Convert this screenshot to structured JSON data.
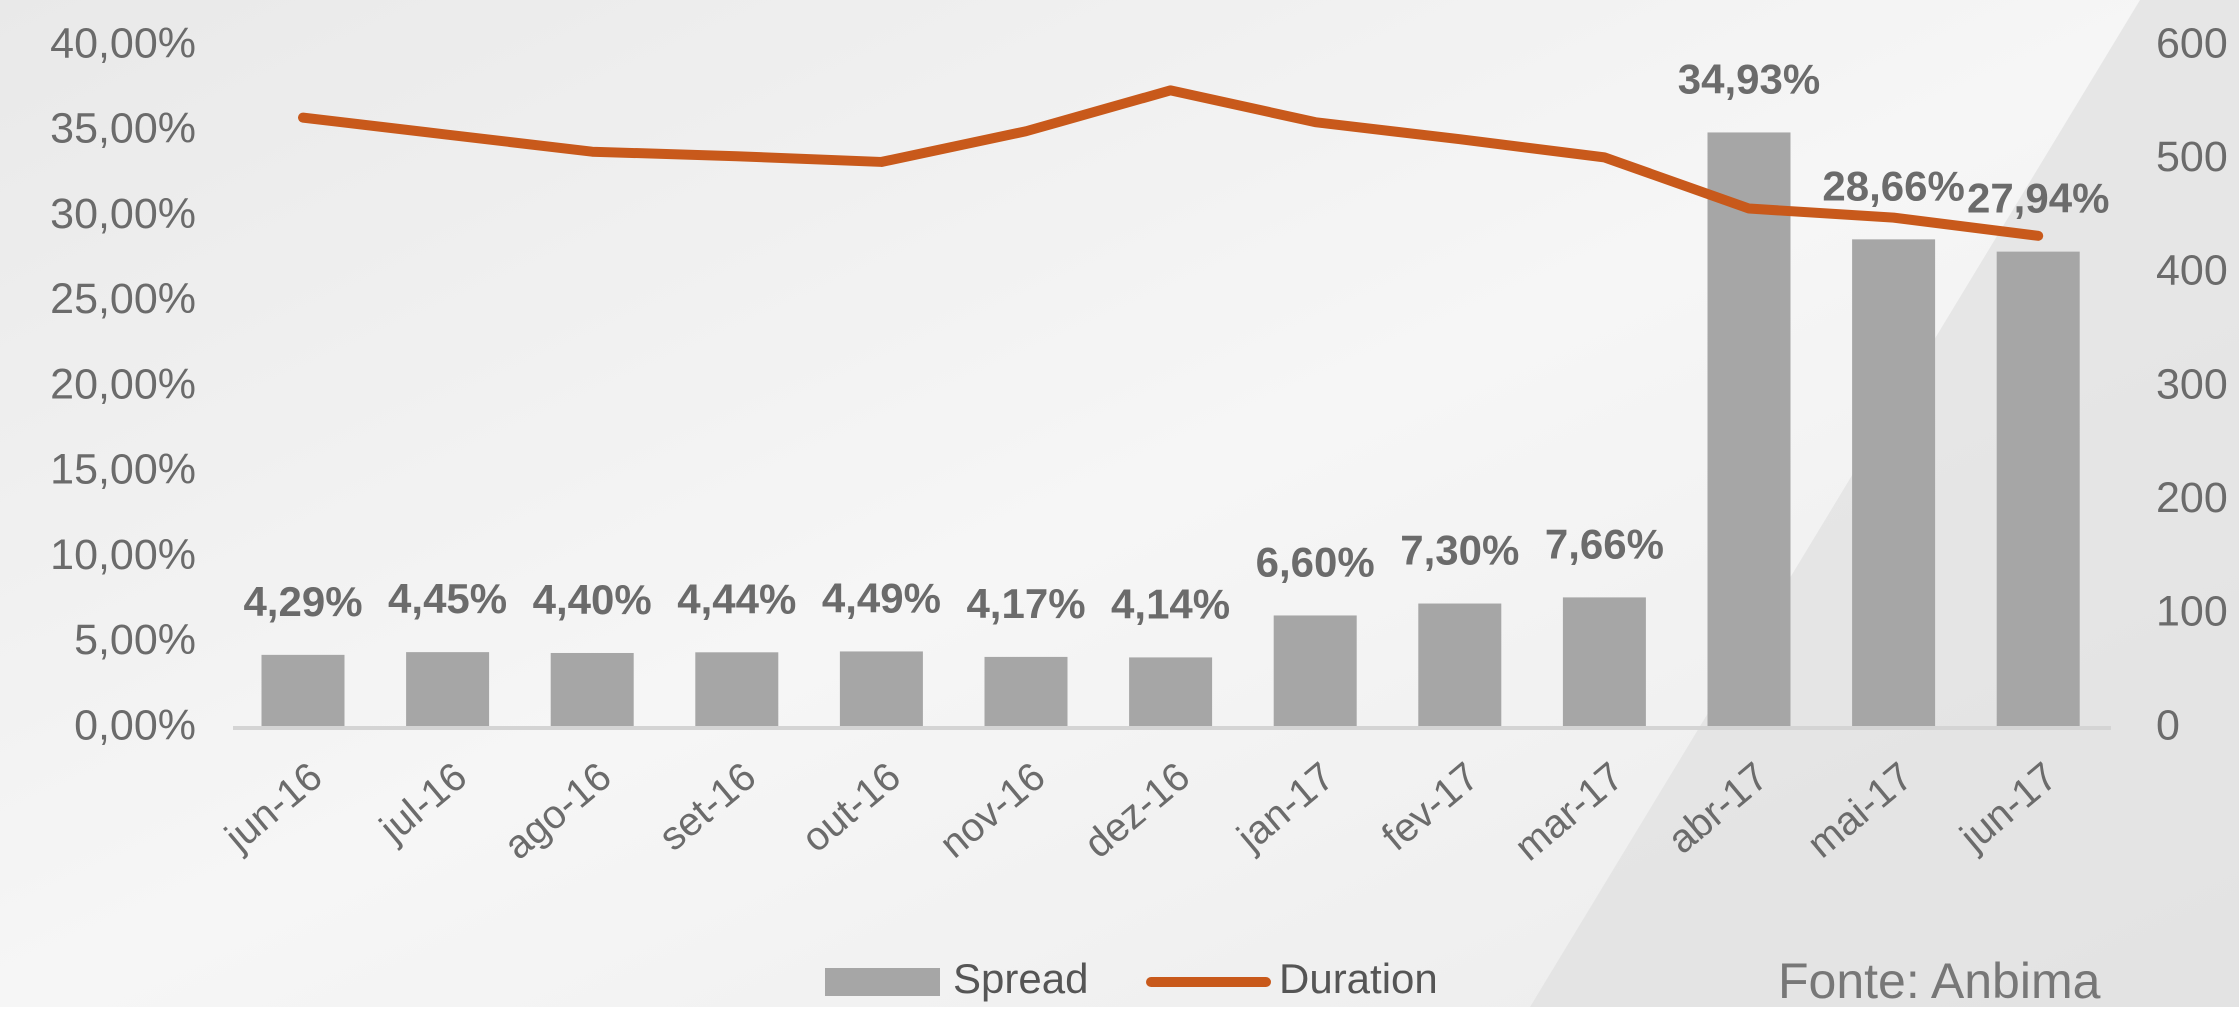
{
  "chart_data": {
    "type": "bar-line",
    "categories": [
      "jun-16",
      "jul-16",
      "ago-16",
      "set-16",
      "out-16",
      "nov-16",
      "dez-16",
      "jan-17",
      "fev-17",
      "mar-17",
      "abr-17",
      "mai-17",
      "jun-17"
    ],
    "series": [
      {
        "name": "Spread",
        "type": "bar",
        "color": "#a6a6a6",
        "axis": "y",
        "values": [
          4.29,
          4.45,
          4.4,
          4.44,
          4.49,
          4.17,
          4.14,
          6.6,
          7.3,
          7.66,
          34.93,
          28.66,
          27.94
        ],
        "value_labels": [
          "4,29%",
          "4,45%",
          "4,40%",
          "4,44%",
          "4,49%",
          "4,17%",
          "4,14%",
          "6,60%",
          "7,30%",
          "7,66%",
          "34,93%",
          "28,66%",
          "27,94%"
        ]
      },
      {
        "name": "Duration",
        "type": "line",
        "color": "#c8591b",
        "axis": "y2",
        "values": [
          537,
          522,
          507,
          503,
          498,
          525,
          561,
          533,
          518,
          502,
          457,
          449,
          433
        ]
      }
    ],
    "ylim": [
      0,
      40
    ],
    "yticks": [
      {
        "value": 0,
        "label": "0,00%"
      },
      {
        "value": 5,
        "label": "5,00%"
      },
      {
        "value": 10,
        "label": "10,00%"
      },
      {
        "value": 15,
        "label": "15,00%"
      },
      {
        "value": 20,
        "label": "20,00%"
      },
      {
        "value": 25,
        "label": "25,00%"
      },
      {
        "value": 30,
        "label": "30,00%"
      },
      {
        "value": 35,
        "label": "35,00%"
      },
      {
        "value": 40,
        "label": "40,00%"
      }
    ],
    "y2lim": [
      0,
      600
    ],
    "y2ticks": [
      0,
      100,
      200,
      300,
      400,
      500,
      600
    ],
    "legend": "bottom",
    "source": "Fonte: Anbima"
  }
}
